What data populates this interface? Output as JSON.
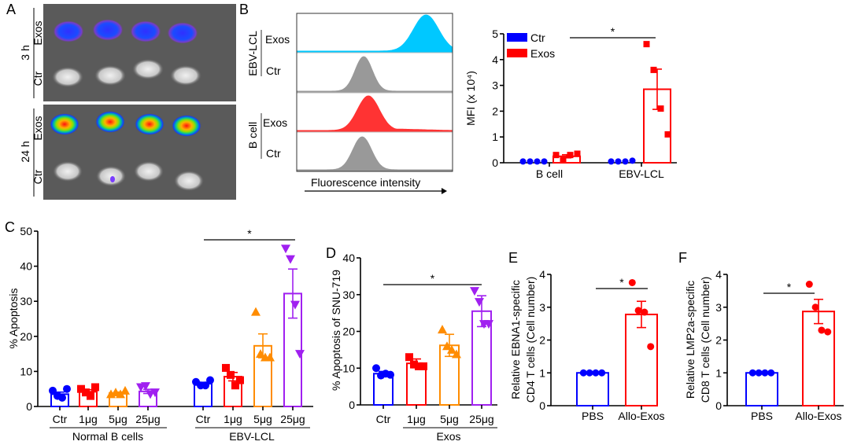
{
  "panel_labels": [
    "A",
    "B",
    "C",
    "D",
    "E",
    "F"
  ],
  "panel_a": {
    "time_labels": [
      "3 h",
      "24 h"
    ],
    "row_labels": [
      "Exos",
      "Ctr"
    ]
  },
  "panel_b_hist": {
    "group_labels": [
      "EBV-LCL",
      "B cell"
    ],
    "row_labels": [
      "Exos",
      "Ctr",
      "Exos",
      "Ctr"
    ],
    "xlabel": "Fluorescence intensity",
    "colors": [
      "#00c8ff",
      "#999999",
      "#ff3333",
      "#999999"
    ]
  },
  "chart_data": [
    {
      "id": "B",
      "type": "bar",
      "ylabel": "MFI (x 10⁴)",
      "ylim": [
        0,
        5
      ],
      "yticks": [
        "0",
        "1",
        "2",
        "3",
        "4",
        "5"
      ],
      "categories": [
        "B cell",
        "EBV-LCL"
      ],
      "legend": {
        "position": "top-left",
        "entries": [
          "Ctr",
          "Exos"
        ]
      },
      "series": [
        {
          "name": "Ctr",
          "color": "#0000ff",
          "marker": "circle",
          "means": [
            0.05,
            0.05
          ],
          "sem": [
            0,
            0
          ],
          "points": [
            [
              0.05,
              0.05,
              0.05,
              0.05
            ],
            [
              0.05,
              0.05,
              0.05,
              0.08
            ]
          ]
        },
        {
          "name": "Exos",
          "color": "#ff0000",
          "marker": "square",
          "means": [
            0.25,
            2.85
          ],
          "sem": [
            0.06,
            0.78
          ],
          "points": [
            [
              0.3,
              0.1,
              0.3,
              0.35
            ],
            [
              4.6,
              3.6,
              2.1,
              1.1
            ]
          ]
        }
      ],
      "significance": [
        {
          "label": "*"
        }
      ]
    },
    {
      "id": "C",
      "type": "bar",
      "ylabel": "% Apoptosis",
      "ylim": [
        0,
        50
      ],
      "yticks": [
        "0",
        "10",
        "20",
        "30",
        "40",
        "50"
      ],
      "groups": [
        "Normal B cells",
        "EBV-LCL"
      ],
      "categories": [
        "Ctr",
        "1μg",
        "5μg",
        "25μg",
        "Ctr",
        "1μg",
        "5μg",
        "25μg"
      ],
      "bars": [
        {
          "color": "#0000ff",
          "marker": "circle",
          "mean": 3.5,
          "sem": 0.6,
          "points": [
            4.5,
            3,
            2.5,
            5
          ]
        },
        {
          "color": "#ff0000",
          "marker": "square",
          "mean": 4.2,
          "sem": 0.6,
          "points": [
            5,
            4,
            3,
            5.5
          ]
        },
        {
          "color": "#ff8c00",
          "marker": "triangle-up",
          "mean": 3.8,
          "sem": 0.3,
          "points": [
            3.5,
            4,
            3.5,
            4.5
          ]
        },
        {
          "color": "#a020f0",
          "marker": "triangle-down",
          "mean": 4.3,
          "sem": 0.6,
          "points": [
            5.5,
            5.8,
            3.5,
            4.0
          ]
        },
        {
          "color": "#0000ff",
          "marker": "circle",
          "mean": 6.5,
          "sem": 0.4,
          "points": [
            7,
            6,
            6,
            7.5
          ]
        },
        {
          "color": "#ff0000",
          "marker": "square",
          "mean": 8.5,
          "sem": 1.2,
          "points": [
            11,
            9,
            6,
            7.5
          ]
        },
        {
          "color": "#ff8c00",
          "marker": "triangle-up",
          "mean": 17.3,
          "sem": 3.4,
          "points": [
            27,
            15,
            14,
            14
          ]
        },
        {
          "color": "#a020f0",
          "marker": "triangle-down",
          "mean": 32.2,
          "sem": 7,
          "points": [
            45,
            42,
            29,
            15
          ]
        }
      ],
      "significance": [
        {
          "label": "*"
        }
      ]
    },
    {
      "id": "D",
      "type": "bar",
      "ylabel": "% Apoptosis of SNU-719",
      "ylim": [
        0,
        40
      ],
      "yticks": [
        "0",
        "10",
        "20",
        "30",
        "40"
      ],
      "groups": [
        "Exos"
      ],
      "categories": [
        "Ctr",
        "1μg",
        "5μg",
        "25μg"
      ],
      "bars": [
        {
          "color": "#0000ff",
          "marker": "circle",
          "mean": 8.5,
          "sem": 0.6,
          "points": [
            10,
            8,
            8.5,
            8.2
          ]
        },
        {
          "color": "#ff0000",
          "marker": "square",
          "mean": 11.3,
          "sem": 1.2,
          "points": [
            13,
            11,
            10.5,
            10.5
          ]
        },
        {
          "color": "#ff8c00",
          "marker": "triangle-up",
          "mean": 16.2,
          "sem": 3,
          "points": [
            20.5,
            16,
            15,
            13.8
          ]
        },
        {
          "color": "#a020f0",
          "marker": "triangle-down",
          "mean": 25.5,
          "sem": 4.2,
          "points": [
            31,
            28,
            22,
            22
          ]
        }
      ],
      "significance": [
        {
          "label": "*"
        }
      ]
    },
    {
      "id": "E",
      "type": "bar",
      "ylabel": [
        "Relative EBNA1-specific",
        "CD4 T cells (Cell number)"
      ],
      "ylim": [
        0,
        4
      ],
      "yticks": [
        "0",
        "1",
        "2",
        "3",
        "4"
      ],
      "categories": [
        "PBS",
        "Allo-Exos"
      ],
      "bars": [
        {
          "color": "#0000ff",
          "marker": "circle",
          "mean": 1,
          "sem": 0,
          "points": [
            1,
            1,
            1,
            1
          ]
        },
        {
          "color": "#ff0000",
          "marker": "circle",
          "mean": 2.78,
          "sem": 0.4,
          "points": [
            3.75,
            2.9,
            2.85,
            1.8
          ]
        }
      ],
      "significance": [
        {
          "label": "*"
        }
      ]
    },
    {
      "id": "F",
      "type": "bar",
      "ylabel": [
        "Relative LMP2a-specific",
        "CD8 T cells (Cell number)"
      ],
      "ylim": [
        0,
        4
      ],
      "yticks": [
        "0",
        "1",
        "2",
        "3",
        "4"
      ],
      "categories": [
        "PBS",
        "Allo-Exos"
      ],
      "bars": [
        {
          "color": "#0000ff",
          "marker": "circle",
          "mean": 1,
          "sem": 0,
          "points": [
            1,
            1,
            1,
            1
          ]
        },
        {
          "color": "#ff0000",
          "marker": "circle",
          "mean": 2.87,
          "sem": 0.37,
          "points": [
            3.7,
            3.0,
            2.3,
            2.25
          ]
        }
      ],
      "significance": [
        {
          "label": "*"
        }
      ]
    }
  ]
}
